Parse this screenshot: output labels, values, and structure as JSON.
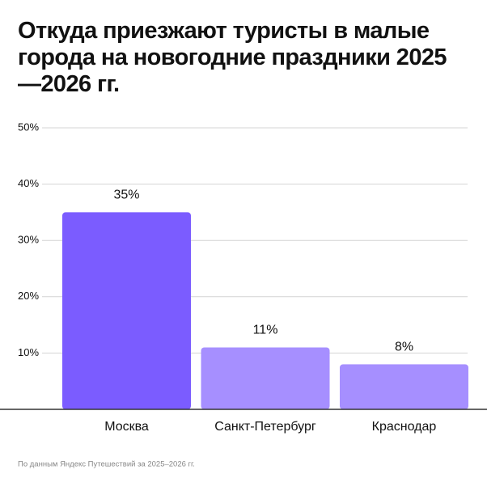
{
  "chart_data": {
    "type": "bar",
    "title": "Откуда приезжают туристы в малые города на новогодние праздники 2025—2026 гг.",
    "categories": [
      "Москва",
      "Санкт-Петербург",
      "Краснодар"
    ],
    "values": [
      35,
      11,
      8
    ],
    "value_labels": [
      "35%",
      "11%",
      "8%"
    ],
    "colors": [
      "#7b5cff",
      "#a68fff",
      "#a68fff"
    ],
    "ylim": [
      0,
      50
    ],
    "yticks": [
      {
        "value": 10,
        "label": "10%"
      },
      {
        "value": 20,
        "label": "20%"
      },
      {
        "value": 30,
        "label": "30%"
      },
      {
        "value": 40,
        "label": "40%"
      },
      {
        "value": 50,
        "label": "50%"
      }
    ],
    "grid": true,
    "source": "По данным Яндекс Путешествий за 2025–2026 гг."
  }
}
